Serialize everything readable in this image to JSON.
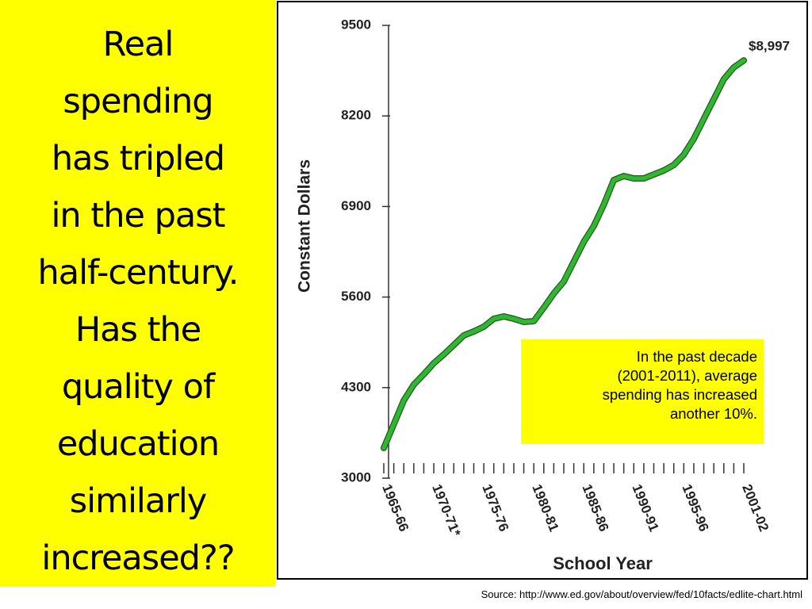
{
  "slide": {
    "heading_lines": [
      "Real",
      "spending",
      "has tripled",
      "in the past",
      "half-century.",
      "Has the",
      "quality of",
      "education",
      "similarly",
      "increased??"
    ],
    "note_lines": [
      "In the past decade",
      "(2001-2011), average",
      "spending has increased",
      "another 10%."
    ],
    "source": "Source: http://www.ed.gov/about/overview/fed/10facts/edlite-chart.html"
  },
  "chart_data": {
    "type": "line",
    "x_label": "School Year",
    "y_label": "Constant Dollars",
    "categories": [
      "1965-66",
      null,
      null,
      null,
      null,
      "1970-71*",
      null,
      null,
      null,
      null,
      "1975-76",
      null,
      null,
      null,
      null,
      "1980-81",
      null,
      null,
      null,
      null,
      "1985-86",
      null,
      null,
      null,
      null,
      "1990-91",
      null,
      null,
      null,
      null,
      "1995-96",
      null,
      null,
      null,
      null,
      null,
      "2001-02"
    ],
    "series": [
      {
        "name": "Spending",
        "color": "#33b533",
        "values": [
          3433,
          3774,
          4116,
          4343,
          4491,
          4651,
          4776,
          4912,
          5049,
          5106,
          5174,
          5288,
          5322,
          5288,
          5243,
          5254,
          5447,
          5652,
          5823,
          6108,
          6392,
          6620,
          6927,
          7280,
          7337,
          7303,
          7303,
          7360,
          7417,
          7496,
          7644,
          7872,
          8157,
          8441,
          8726,
          8897,
          8997
        ],
        "value_labels": [
          null,
          null,
          null,
          null,
          null,
          null,
          null,
          null,
          null,
          null,
          null,
          null,
          null,
          null,
          null,
          null,
          null,
          null,
          null,
          null,
          null,
          null,
          null,
          null,
          null,
          null,
          null,
          null,
          null,
          null,
          null,
          null,
          null,
          null,
          null,
          null,
          "$8,997"
        ]
      }
    ],
    "ylim": [
      3000,
      9500
    ],
    "yticks": [
      3000,
      4300,
      5600,
      6900,
      8200,
      9500
    ],
    "grid": false
  }
}
